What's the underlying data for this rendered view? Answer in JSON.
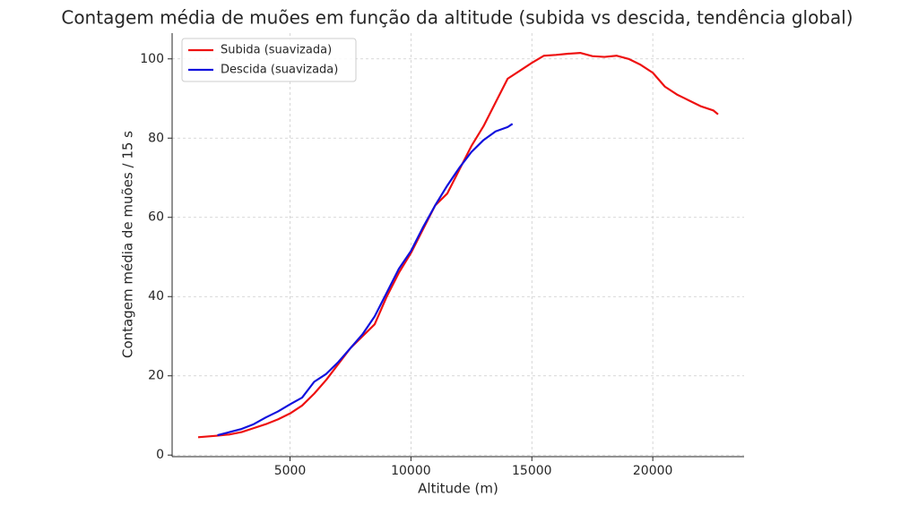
{
  "chart_data": {
    "type": "line",
    "title": "Contagem média de muões em função da altitude (subida vs descida, tendência global)",
    "xlabel": "Altitude (m)",
    "ylabel": "Contagem média de muões / 15 s",
    "xlim": [
      125,
      23775
    ],
    "ylim": [
      -0.4,
      106.5
    ],
    "xticks": [
      5000,
      10000,
      15000,
      20000
    ],
    "yticks": [
      0,
      20,
      40,
      60,
      80,
      100
    ],
    "grid": true,
    "legend": "upper-left",
    "series": [
      {
        "name": "Subida (suavizada)",
        "color": "#ee1111",
        "x": [
          1200,
          2000,
          2500,
          3000,
          3500,
          4000,
          4500,
          5000,
          5500,
          6000,
          6500,
          7000,
          7500,
          8000,
          8500,
          9000,
          9500,
          10000,
          10500,
          11000,
          11500,
          12000,
          12500,
          13000,
          13500,
          14000,
          14500,
          15000,
          15500,
          16000,
          16500,
          17000,
          17500,
          18000,
          18500,
          19000,
          19500,
          20000,
          20500,
          21000,
          21500,
          22000,
          22500,
          22700
        ],
        "values": [
          4.5,
          4.9,
          5.2,
          5.8,
          6.8,
          7.8,
          9.0,
          10.5,
          12.5,
          15.5,
          19,
          23,
          27,
          30,
          33,
          40,
          46,
          51,
          57,
          63,
          66,
          72,
          78,
          83,
          89,
          95,
          97,
          99,
          100.8,
          101,
          101.3,
          101.5,
          100.7,
          100.5,
          100.8,
          100,
          98.5,
          96.5,
          93,
          91,
          89.5,
          88,
          87,
          86
        ]
      },
      {
        "name": "Descida (suavizada)",
        "color": "#1111dd",
        "x": [
          2000,
          2500,
          3000,
          3500,
          4000,
          4500,
          5000,
          5500,
          6000,
          6500,
          7000,
          7500,
          8000,
          8500,
          9000,
          9500,
          10000,
          10500,
          11000,
          11500,
          12000,
          12500,
          13000,
          13500,
          14000,
          14200
        ],
        "values": [
          5.0,
          5.8,
          6.6,
          7.8,
          9.5,
          11,
          12.8,
          14.5,
          18.5,
          20.5,
          23.5,
          27,
          30.5,
          35,
          41,
          47,
          51.5,
          57.5,
          63,
          68,
          72.5,
          76.5,
          79.5,
          81.7,
          82.8,
          83.6
        ]
      }
    ]
  }
}
